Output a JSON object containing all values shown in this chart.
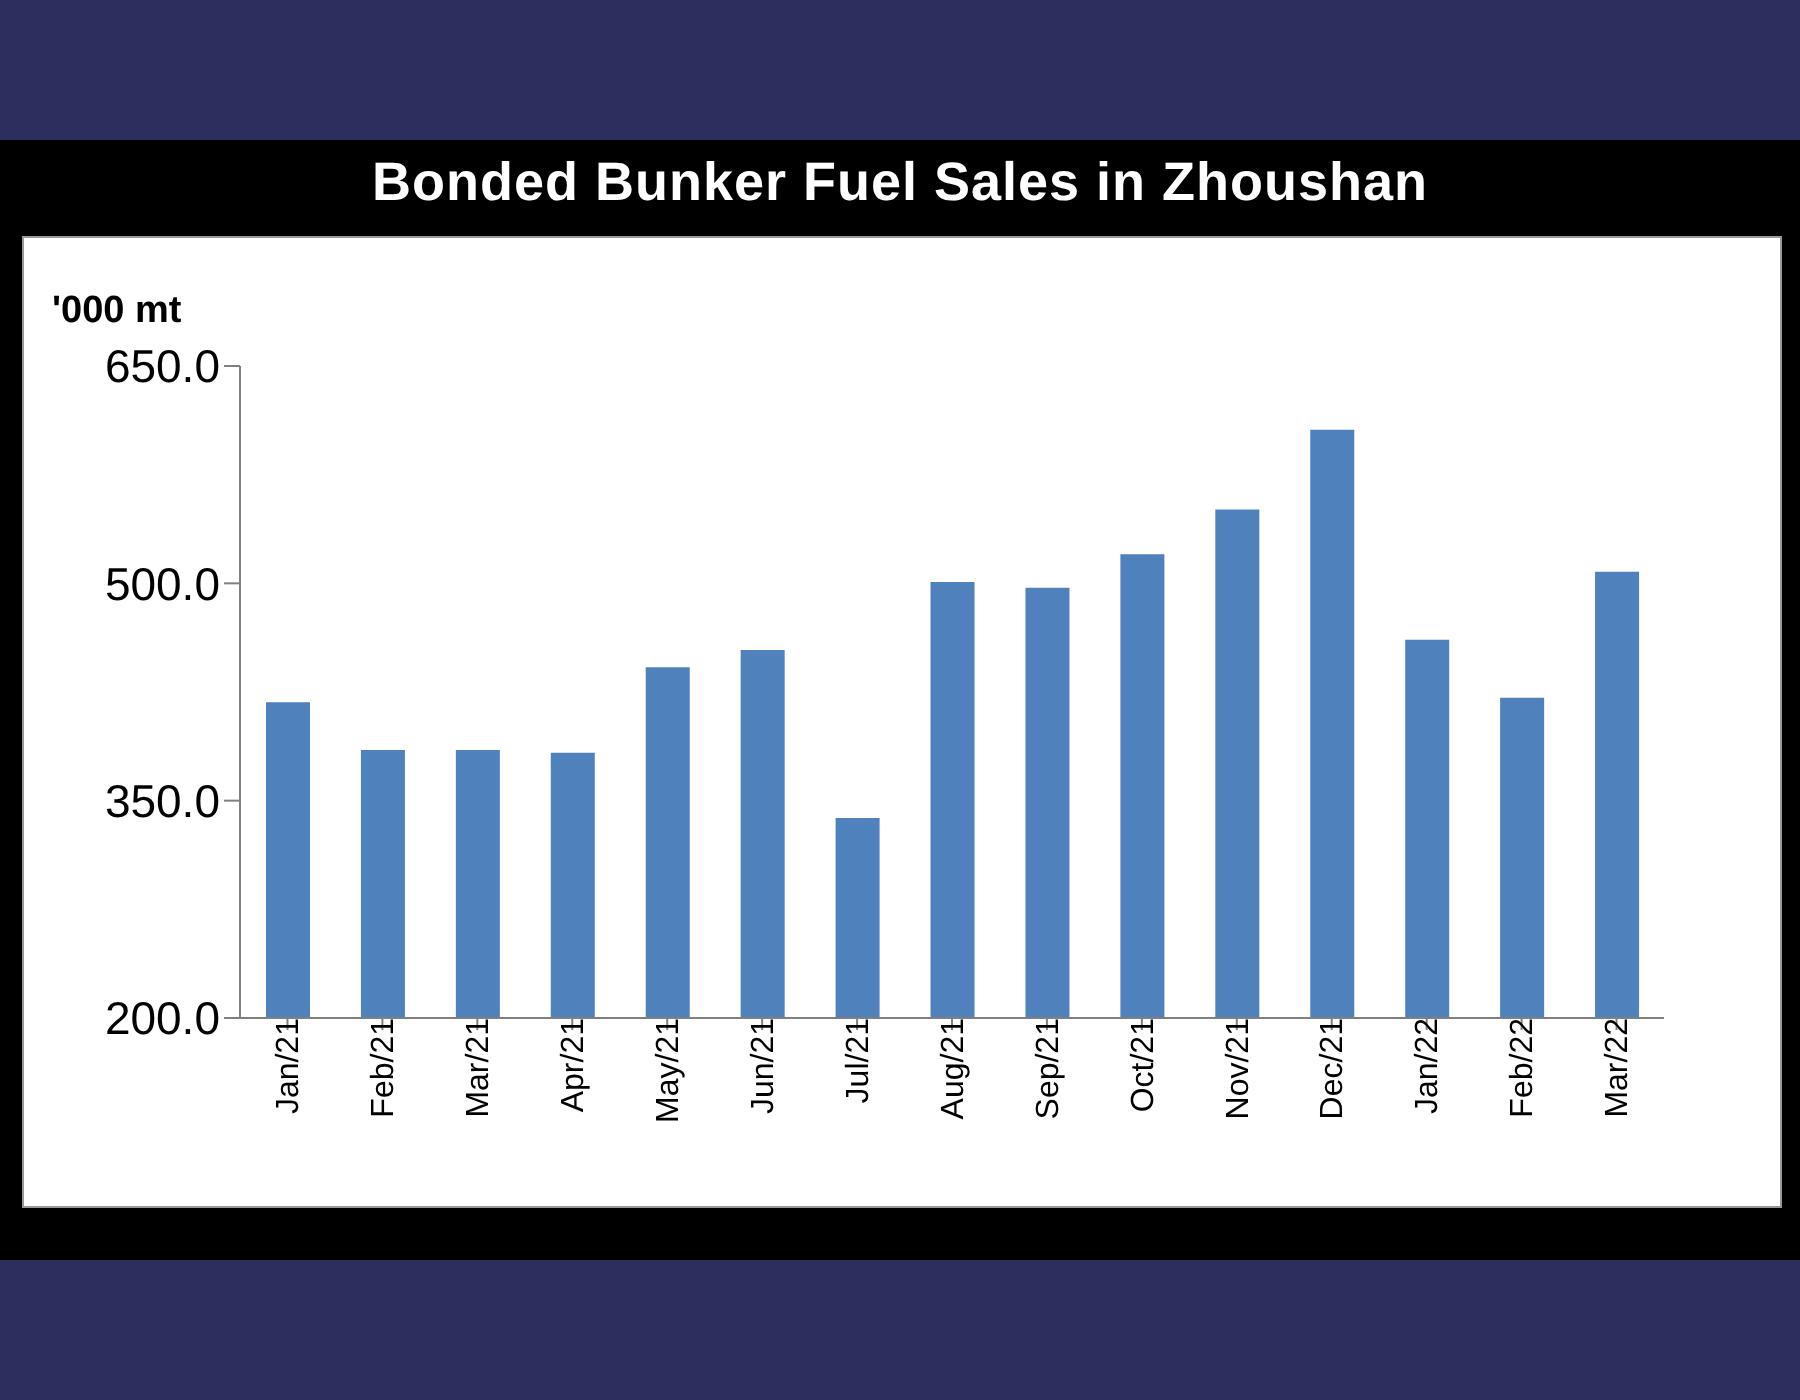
{
  "chart_data": {
    "type": "bar",
    "title": "Bonded Bunker Fuel Sales in Zhoushan",
    "ylabel": "'000 mt",
    "categories": [
      "Jan/21",
      "Feb/21",
      "Mar/21",
      "Apr/21",
      "May/21",
      "Jun/21",
      "Jul/21",
      "Aug/21",
      "Sep/21",
      "Oct/21",
      "Nov/21",
      "Dec/21",
      "Jan/22",
      "Feb/22",
      "Mar/22"
    ],
    "values": [
      418,
      385,
      385,
      383,
      442,
      454,
      338,
      501,
      497,
      520,
      551,
      606,
      461,
      421,
      508
    ],
    "color": "#4f81bd",
    "ylim": [
      200,
      650
    ],
    "yticks": [
      {
        "value": 200,
        "label": "200.0"
      },
      {
        "value": 350,
        "label": "350.0"
      },
      {
        "value": 500,
        "label": "500.0"
      },
      {
        "value": 650,
        "label": "650.0"
      }
    ],
    "grid": false
  }
}
